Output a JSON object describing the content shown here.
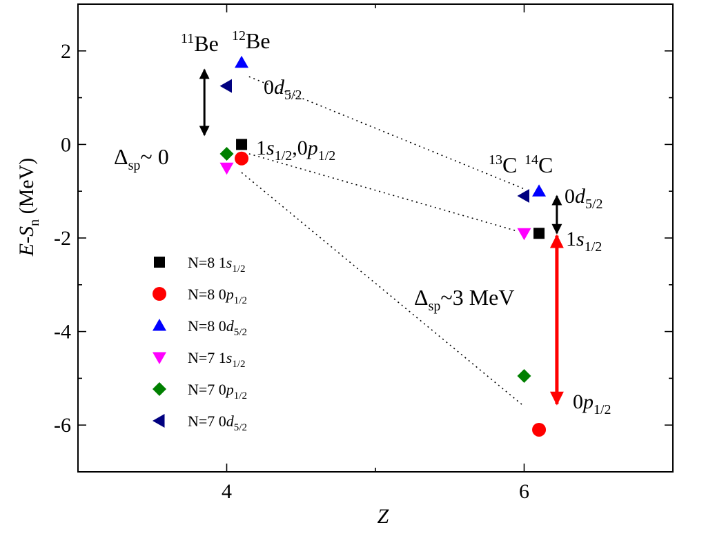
{
  "chart_data": {
    "type": "scatter",
    "xlabel": "Z",
    "ylabel": "E-S_n (MeV)",
    "ylabel_parts": {
      "main": "E-S",
      "sub": "n",
      "unit": " (MeV)"
    },
    "xlim": [
      3.0,
      7.0
    ],
    "ylim": [
      -7.0,
      3.0
    ],
    "xticks": [
      4,
      6
    ],
    "xticks_minor": [
      3,
      5,
      7
    ],
    "yticks": [
      2,
      0,
      -2,
      -4,
      -6
    ],
    "ytick_labels": [
      "2",
      "0",
      "-2",
      "-4",
      "-6"
    ],
    "yticks_minor": [
      3,
      1,
      -1,
      -3,
      -5,
      -7
    ],
    "legend_position": "lower-left",
    "series": [
      {
        "name": "N=8 1s1/2",
        "label_main": "N=8 1",
        "label_sym": "s",
        "label_sub": "1/2",
        "marker": "square",
        "color": "#000000",
        "x": [
          4.1,
          6.1
        ],
        "y": [
          0.0,
          -1.9
        ]
      },
      {
        "name": "N=8 0p1/2",
        "label_main": "N=8 0",
        "label_sym": "p",
        "label_sub": "1/2",
        "marker": "circle",
        "color": "#ff0000",
        "x": [
          4.1,
          6.1
        ],
        "y": [
          -0.3,
          -6.1
        ]
      },
      {
        "name": "N=8 0d5/2",
        "label_main": "N=8 0",
        "label_sym": "d",
        "label_sub": "5/2",
        "marker": "triangle-up",
        "color": "#0000ff",
        "x": [
          4.1,
          6.1
        ],
        "y": [
          1.75,
          -1.0
        ]
      },
      {
        "name": "N=7 1s1/2",
        "label_main": "N=7 1",
        "label_sym": "s",
        "label_sub": "1/2",
        "marker": "triangle-down",
        "color": "#ff00ff",
        "x": [
          4.0,
          6.0
        ],
        "y": [
          -0.5,
          -1.9
        ]
      },
      {
        "name": "N=7 0p1/2",
        "label_main": "N=7 0",
        "label_sym": "p",
        "label_sub": "1/2",
        "marker": "diamond",
        "color": "#008000",
        "x": [
          4.0,
          6.0
        ],
        "y": [
          -0.2,
          -4.95
        ]
      },
      {
        "name": "N=7 0d5/2",
        "label_main": "N=7 0",
        "label_sym": "d",
        "label_sub": "5/2",
        "marker": "triangle-left",
        "color": "#000080",
        "x": [
          4.0,
          6.0
        ],
        "y": [
          1.25,
          -1.1
        ]
      }
    ],
    "dotted_lines": [
      {
        "x": [
          4.15,
          6.0
        ],
        "y": [
          1.45,
          -0.95
        ]
      },
      {
        "x": [
          4.15,
          5.95
        ],
        "y": [
          -0.2,
          -1.85
        ]
      },
      {
        "x": [
          4.1,
          6.0
        ],
        "y": [
          -0.6,
          -5.6
        ]
      }
    ],
    "arrows": [
      {
        "x": 3.85,
        "y_from": 1.6,
        "y_to": 0.2,
        "color": "#000000",
        "double": true
      },
      {
        "x": 6.22,
        "y_from": -1.1,
        "y_to": -1.9,
        "color": "#000000",
        "double": true
      },
      {
        "x": 6.22,
        "y_from": -1.95,
        "y_to": -5.55,
        "color": "#ff0000",
        "double": true
      }
    ],
    "annotations": {
      "be11": {
        "sup": "11",
        "main": "Be"
      },
      "be12": {
        "sup": "12",
        "main": "Be"
      },
      "c13": {
        "sup": "13",
        "main": "C"
      },
      "c14": {
        "sup": "14",
        "main": "C"
      },
      "be_d52": {
        "pre": "0",
        "sym": "d",
        "sub": "5/2"
      },
      "be_sp": {
        "a": "1",
        "b": "s",
        "c": "1/2",
        "d": ",0",
        "e": "p",
        "f": "1/2"
      },
      "delta_be": {
        "main": "Δ",
        "sub": "sp",
        "rest": "~ 0"
      },
      "c_d52": {
        "pre": "0",
        "sym": "d",
        "sub": "5/2"
      },
      "c_s12": {
        "pre": "1",
        "sym": "s",
        "sub": "1/2"
      },
      "delta_c": {
        "main": "Δ",
        "sub": "sp",
        "rest": "~3 MeV"
      },
      "c_p12": {
        "pre": "0",
        "sym": "p",
        "sub": "1/2"
      }
    }
  }
}
